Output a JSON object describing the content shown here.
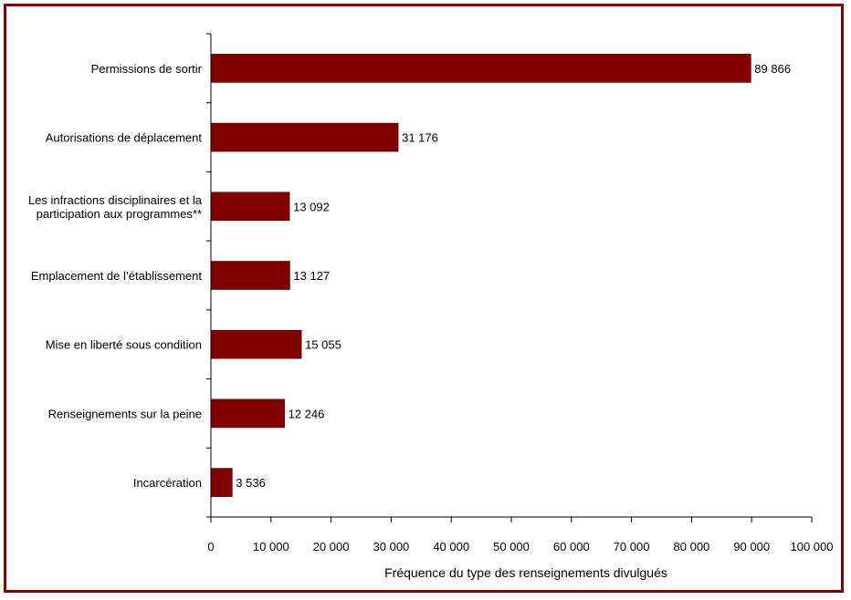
{
  "chart_data": {
    "type": "bar",
    "orientation": "horizontal",
    "categories": [
      [
        "Permissions de sortir"
      ],
      [
        "Autorisations de déplacement"
      ],
      [
        "Les infractions disciplinaires et la",
        "participation aux programmes**"
      ],
      [
        "Emplacement de l’établissement"
      ],
      [
        "Mise en liberté sous condition"
      ],
      [
        "Renseignements sur la peine"
      ],
      [
        "Incarcération"
      ]
    ],
    "values": [
      89866,
      31176,
      13092,
      13127,
      15055,
      12246,
      3536
    ],
    "value_labels": [
      "89 866",
      "31 176",
      "13 092",
      "13 127",
      "15 055",
      "12 246",
      "3 536"
    ],
    "xlabel": "Fréquence du type des renseignements divulgués",
    "xlim": [
      0,
      100000
    ],
    "xticks": [
      0,
      10000,
      20000,
      30000,
      40000,
      50000,
      60000,
      70000,
      80000,
      90000,
      100000
    ],
    "xtick_labels": [
      "0",
      "10 000",
      "20 000",
      "30 000",
      "40 000",
      "50 000",
      "60 000",
      "70 000",
      "80 000",
      "90 000",
      "100 000"
    ],
    "bar_color": "#800000",
    "frame_color": "#800000",
    "grid": false,
    "legend": "none"
  }
}
